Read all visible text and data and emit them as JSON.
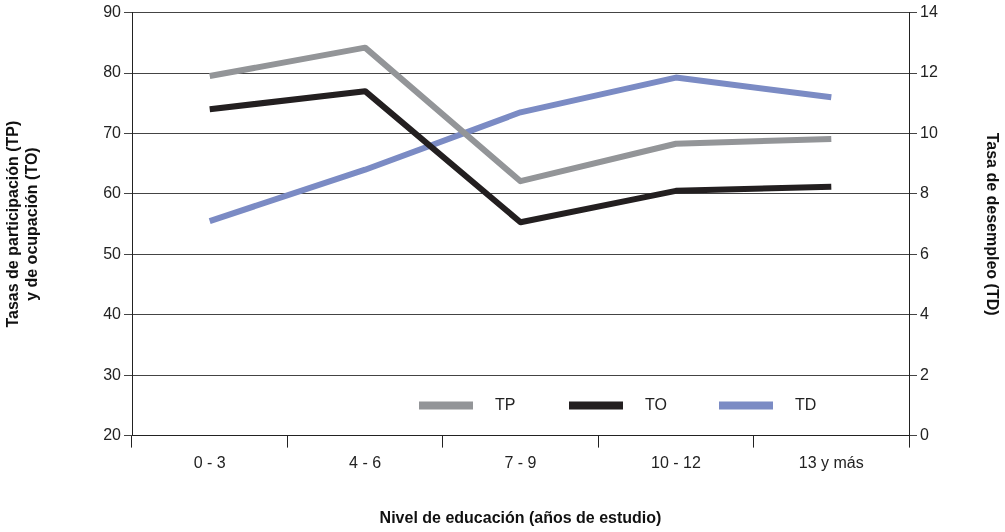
{
  "chart_data": {
    "type": "line",
    "xlabel": "Nivel de educación (años de estudio)",
    "ylabel": "Tasas de participación (TP)\ny de ocupación (TO)",
    "y2label": "Tasa de desempleo (TD)",
    "categories": [
      "0 - 3",
      "4 - 6",
      "7 - 9",
      "10 - 12",
      "13 y más"
    ],
    "series": [
      {
        "name": "TP",
        "color": "#939598",
        "values": [
          79.5,
          84.2,
          62.1,
          68.3,
          69.1
        ]
      },
      {
        "name": "TO",
        "color": "#231f20",
        "values": [
          74,
          77,
          55.3,
          60.5,
          61.2
        ]
      },
      {
        "name": "TD",
        "color": "#7b8bc4",
        "axis": "y2",
        "values": [
          7.1,
          8.8,
          10.7,
          11.85,
          11.2
        ]
      }
    ],
    "ylim": [
      20,
      90
    ],
    "yticks": [
      20,
      30,
      40,
      50,
      60,
      70,
      80,
      90
    ],
    "y2lim": [
      0,
      14
    ],
    "y2ticks": [
      0,
      2,
      4,
      6,
      8,
      10,
      12,
      14
    ],
    "grid": "y",
    "legend": "bottom right",
    "marker": "none",
    "line_style": "solid"
  }
}
